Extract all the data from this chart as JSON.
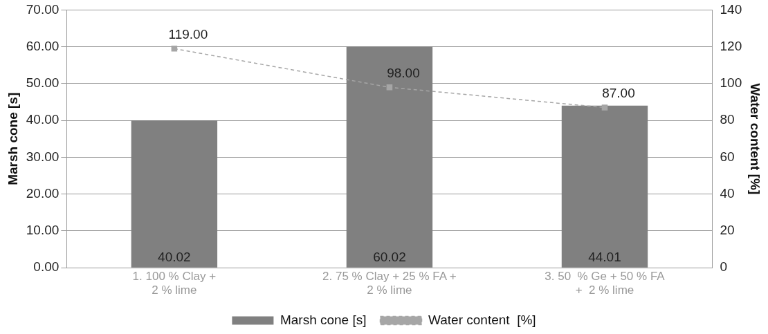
{
  "chart_data": {
    "type": "bar",
    "ylabel": "Marsh cone [s]",
    "y2label": "Water content [%]",
    "categories": [
      "1. 100 % Clay +\n2 % lime",
      "2. 75 % Clay + 25 % FA +\n2 % lime",
      "3. 50  % Ge + 50 % FA\n+  2 % lime"
    ],
    "series": [
      {
        "name": "Marsh cone [s]",
        "color": "#808080",
        "values": [
          40.02,
          60.02,
          44.01
        ],
        "value_labels": [
          "40.02",
          "60.02",
          "44.01"
        ]
      },
      {
        "name": "Water content  [%]",
        "type": "line",
        "axis": "y2",
        "color": "#a6a6a6",
        "line_style": "dashed",
        "marker": "square",
        "values": [
          119,
          98,
          87
        ],
        "value_labels": [
          "119.00",
          "98.00",
          "87.00"
        ]
      }
    ],
    "ylim": [
      0,
      70
    ],
    "yticks": [
      {
        "value": 0,
        "label": "0.00"
      },
      {
        "value": 10,
        "label": "10.00"
      },
      {
        "value": 20,
        "label": "20.00"
      },
      {
        "value": 30,
        "label": "30.00"
      },
      {
        "value": 40,
        "label": "40.00"
      },
      {
        "value": 50,
        "label": "50.00"
      },
      {
        "value": 60,
        "label": "60.00"
      },
      {
        "value": 70,
        "label": "70.00"
      }
    ],
    "y2lim": [
      0,
      140
    ],
    "y2ticks": [
      0,
      20,
      40,
      60,
      80,
      100,
      120,
      140
    ],
    "grid": "y",
    "legend": "bottom"
  }
}
